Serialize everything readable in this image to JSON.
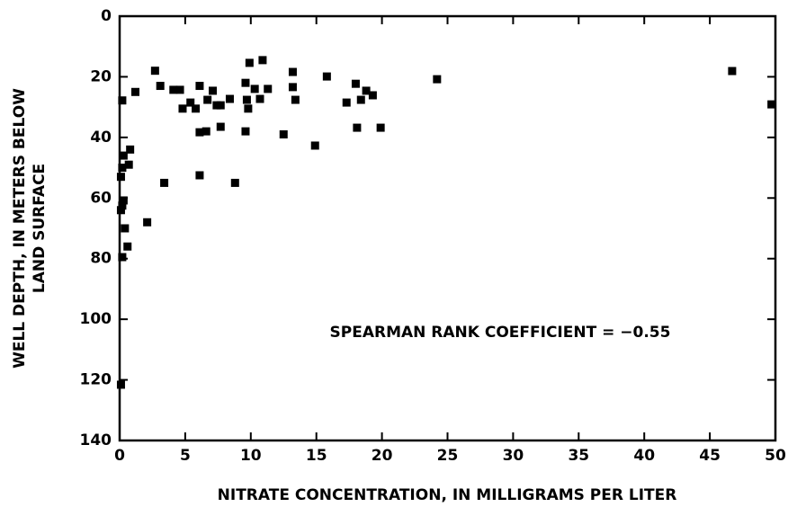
{
  "chart_data": {
    "type": "scatter",
    "xlabel": "NITRATE CONCENTRATION, IN MILLIGRAMS PER LITER",
    "ylabel": [
      "WELL DEPTH, IN METERS BELOW",
      "LAND SURFACE"
    ],
    "annotation": "SPEARMAN RANK COEFFICIENT = −0.55",
    "color": "#000000",
    "y_inverted": true,
    "xlim": [
      0,
      50
    ],
    "xticks": [
      0,
      5,
      10,
      15,
      20,
      25,
      30,
      35,
      40,
      45,
      50
    ],
    "ylim": [
      0,
      140
    ],
    "yticks": [
      0,
      20,
      40,
      60,
      80,
      100,
      120,
      140
    ],
    "series": [
      {
        "name": null,
        "x": [
          0.2,
          0.1,
          0.1,
          0.2,
          0.3,
          0.1,
          0.2,
          0.3,
          0.7,
          0.8,
          0.4,
          0.6,
          0.2,
          1.2,
          2.1,
          2.7,
          3.1,
          3.4,
          4.1,
          4.6,
          4.8,
          5.4,
          5.8,
          6.1,
          6.1,
          6.1,
          6.6,
          6.7,
          7.1,
          7.4,
          7.7,
          7.7,
          8.4,
          8.8,
          9.6,
          9.6,
          9.7,
          9.8,
          9.9,
          10.3,
          10.7,
          10.9,
          11.3,
          12.5,
          13.2,
          13.2,
          13.4,
          14.9,
          15.8,
          17.3,
          18.0,
          18.1,
          18.4,
          18.8,
          19.3,
          19.9,
          24.2,
          46.7,
          49.7
        ],
        "values": [
          27.8,
          121.6,
          64,
          62.5,
          60.8,
          53,
          50,
          46,
          49,
          44,
          70,
          76,
          79.5,
          25,
          68,
          18,
          23,
          55,
          24.3,
          24.3,
          30.5,
          28.5,
          30.5,
          23,
          38.3,
          52.5,
          38,
          27.6,
          24.6,
          29.4,
          29.4,
          36.5,
          27.3,
          55,
          22,
          38,
          27.6,
          30.5,
          15.4,
          24,
          27.3,
          14.5,
          24,
          39,
          18.4,
          23.4,
          27.6,
          42.7,
          19.9,
          28.5,
          22.3,
          36.8,
          27.6,
          24.6,
          26.1,
          36.8,
          20.8,
          18.1,
          29.1
        ]
      }
    ]
  }
}
